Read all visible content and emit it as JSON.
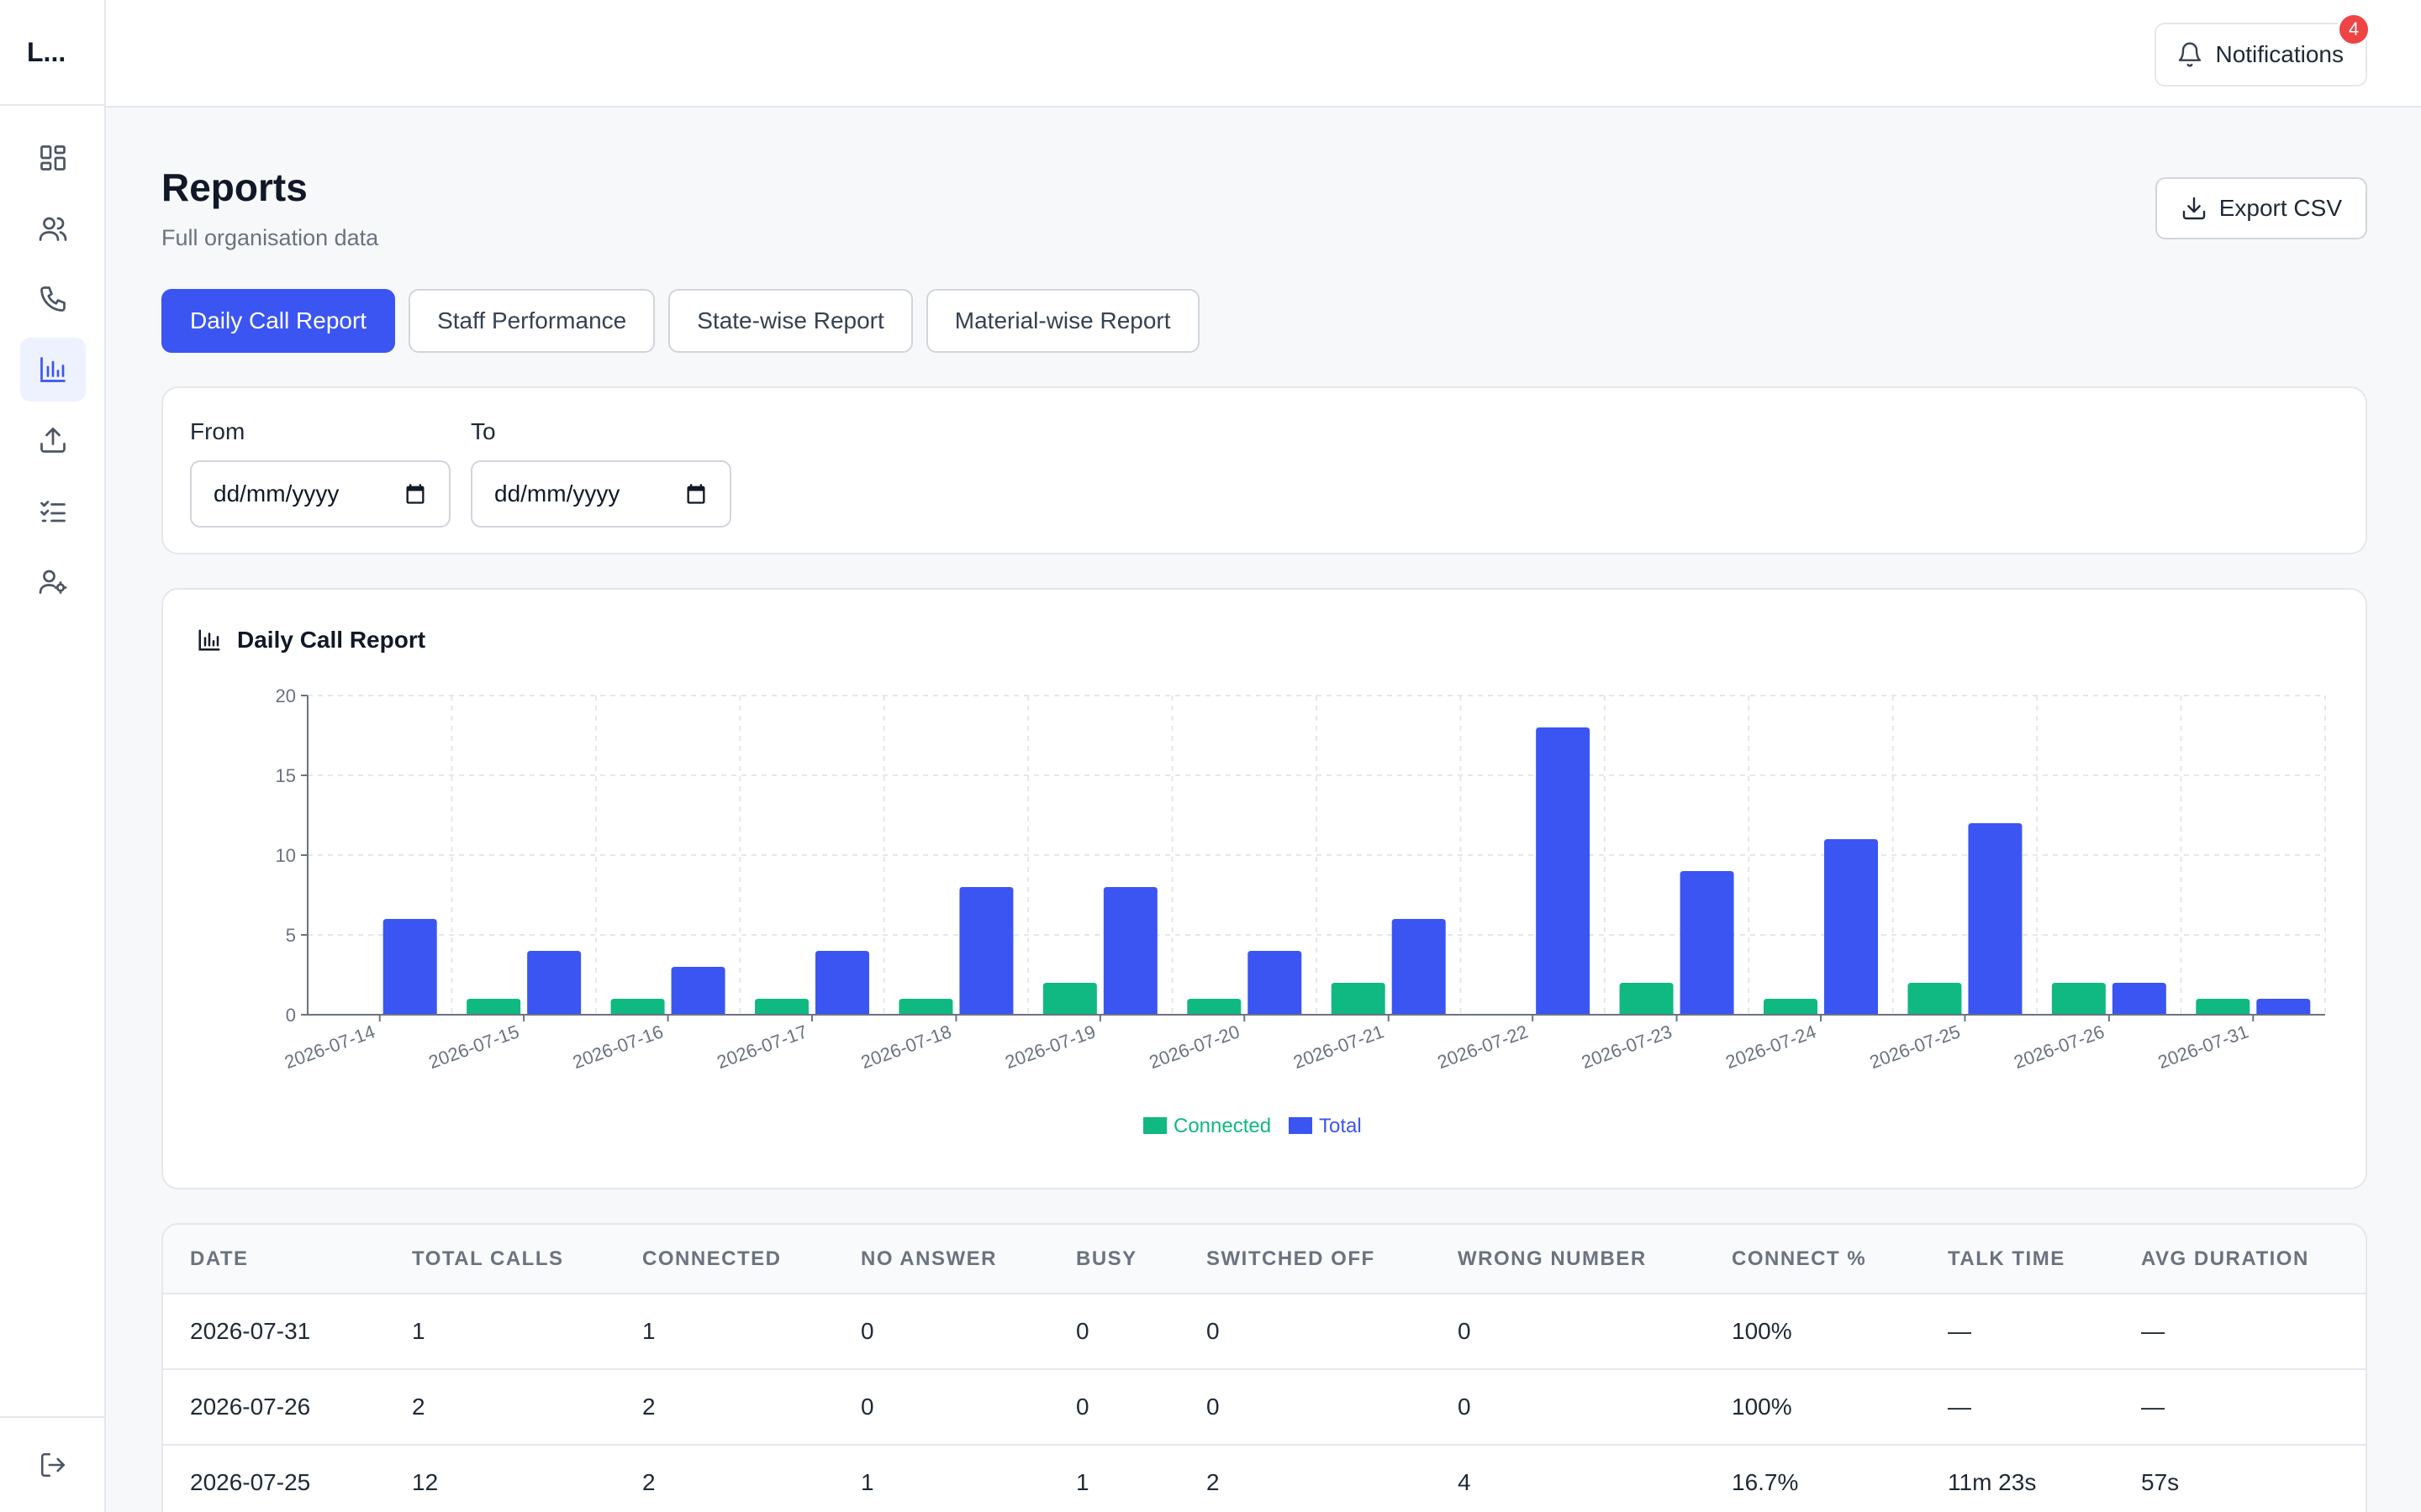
{
  "app": {
    "logo_text": "L..."
  },
  "sidebar": {
    "items": [
      {
        "name": "dashboard-icon"
      },
      {
        "name": "users-icon"
      },
      {
        "name": "phone-icon"
      },
      {
        "name": "bar-chart-icon",
        "active": true
      },
      {
        "name": "upload-icon"
      },
      {
        "name": "tasks-icon"
      },
      {
        "name": "user-settings-icon"
      }
    ],
    "logout_icon": "logout-icon"
  },
  "topbar": {
    "notifications_label": "Notifications",
    "notifications_count": "4"
  },
  "header": {
    "title": "Reports",
    "subtitle": "Full organisation data",
    "export_label": "Export CSV"
  },
  "tabs": [
    {
      "label": "Daily Call Report",
      "active": true
    },
    {
      "label": "Staff Performance"
    },
    {
      "label": "State-wise Report"
    },
    {
      "label": "Material-wise Report"
    }
  ],
  "filters": {
    "from_label": "From",
    "from_value": "dd/mm/yyyy",
    "to_label": "To",
    "to_value": "dd/mm/yyyy"
  },
  "chart_title": "Daily Call Report",
  "chart_data": {
    "type": "bar",
    "categories": [
      "2026-07-14",
      "2026-07-15",
      "2026-07-16",
      "2026-07-17",
      "2026-07-18",
      "2026-07-19",
      "2026-07-20",
      "2026-07-21",
      "2026-07-22",
      "2026-07-23",
      "2026-07-24",
      "2026-07-25",
      "2026-07-26",
      "2026-07-31"
    ],
    "series": [
      {
        "name": "Connected",
        "color": "#10b981",
        "values": [
          0,
          1,
          1,
          1,
          1,
          2,
          1,
          2,
          0,
          2,
          1,
          2,
          2,
          1
        ]
      },
      {
        "name": "Total",
        "color": "#3b55f3",
        "values": [
          6,
          4,
          3,
          4,
          8,
          8,
          4,
          6,
          18,
          9,
          11,
          12,
          2,
          1
        ]
      }
    ],
    "ylim": [
      0,
      20
    ],
    "yticks": [
      0,
      5,
      10,
      15,
      20
    ],
    "grid": true,
    "legend": "bottom-center"
  },
  "table": {
    "headers": [
      "DATE",
      "TOTAL CALLS",
      "CONNECTED",
      "NO ANSWER",
      "BUSY",
      "SWITCHED OFF",
      "WRONG NUMBER",
      "CONNECT %",
      "TALK TIME",
      "AVG DURATION"
    ],
    "rows": [
      [
        "2026-07-31",
        "1",
        "1",
        "0",
        "0",
        "0",
        "0",
        "100%",
        "—",
        "—"
      ],
      [
        "2026-07-26",
        "2",
        "2",
        "0",
        "0",
        "0",
        "0",
        "100%",
        "—",
        "—"
      ],
      [
        "2026-07-25",
        "12",
        "2",
        "1",
        "1",
        "2",
        "4",
        "16.7%",
        "11m 23s",
        "57s"
      ]
    ]
  }
}
